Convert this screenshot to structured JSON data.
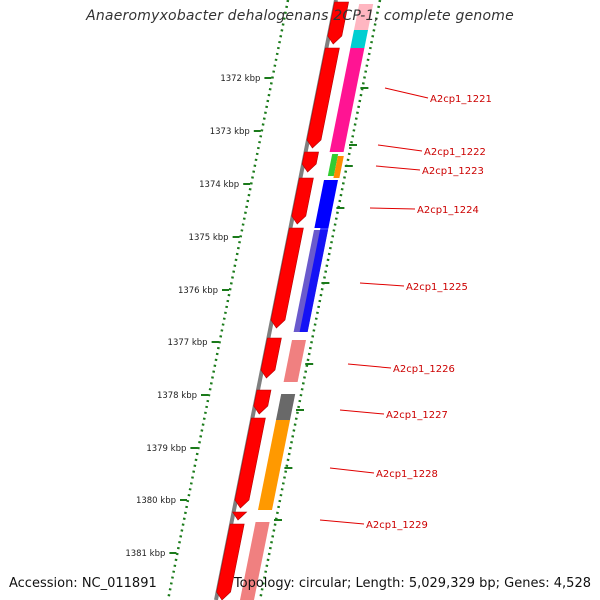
{
  "title": "Anaeromyxobacter dehalogenans 2CP-1, complete genome",
  "footer": {
    "accession": "Accession: NC_011891",
    "summary": "Topology: circular; Length: 5,029,329 bp; Genes: 4,528"
  },
  "scale": {
    "ticks": [
      {
        "label": "1372 kbp",
        "kbp": 1372
      },
      {
        "label": "1373 kbp",
        "kbp": 1373
      },
      {
        "label": "1374 kbp",
        "kbp": 1374
      },
      {
        "label": "1375 kbp",
        "kbp": 1375
      },
      {
        "label": "1376 kbp",
        "kbp": 1376
      },
      {
        "label": "1377 kbp",
        "kbp": 1377
      },
      {
        "label": "1378 kbp",
        "kbp": 1378
      },
      {
        "label": "1379 kbp",
        "kbp": 1379
      },
      {
        "label": "1380 kbp",
        "kbp": 1380
      },
      {
        "label": "1381 kbp",
        "kbp": 1381
      }
    ]
  },
  "genes": [
    {
      "label": "A2cp1_1221",
      "cog_color": "#ff1493"
    },
    {
      "label": "A2cp1_1222",
      "cog_color": "#ff1493"
    },
    {
      "label": "A2cp1_1223",
      "cog_color": "#ff8c00"
    },
    {
      "label": "A2cp1_1224",
      "cog_color": "#0000ff"
    },
    {
      "label": "A2cp1_1225",
      "cog_color": "#6a5acd"
    },
    {
      "label": "A2cp1_1226",
      "cog_color": "#f08080"
    },
    {
      "label": "A2cp1_1227",
      "cog_color": "#696969"
    },
    {
      "label": "A2cp1_1228",
      "cog_color": "#ff9900"
    },
    {
      "label": "A2cp1_1229",
      "cog_color": "#f08080"
    }
  ],
  "colors": {
    "cds": "#ff0000",
    "backbone": "#7f7f7f",
    "tick": "#1a7a1a",
    "label_line": "#e00000",
    "label_text": "#cc0000"
  }
}
